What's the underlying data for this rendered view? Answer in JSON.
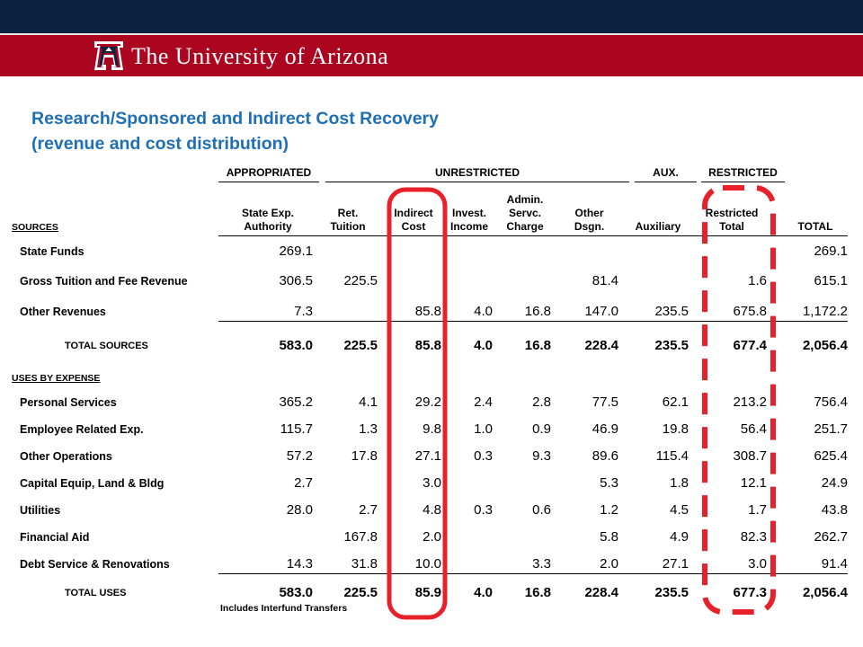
{
  "header": {
    "wordmark": "The University of Arizona",
    "brand_navy": "#0c2340",
    "brand_red": "#ab0520",
    "logo_icon": "block-a-logo-icon"
  },
  "title_line1": "Research/Sponsored and Indirect Cost Recovery",
  "title_line2": "(revenue and cost distribution)",
  "groups": {
    "appropriated": "APPROPRIATED",
    "unrestricted": "UNRESTRICTED",
    "aux": "AUX.",
    "restricted": "RESTRICTED"
  },
  "columns": [
    {
      "key": "state",
      "line1": "State Exp.",
      "line2": "Authority",
      "line3": ""
    },
    {
      "key": "ret",
      "line1": "Ret.",
      "line2": "Tuition",
      "line3": ""
    },
    {
      "key": "indirect",
      "line1": "Indirect",
      "line2": "Cost",
      "line3": ""
    },
    {
      "key": "invest",
      "line1": "Invest.",
      "line2": "Income",
      "line3": ""
    },
    {
      "key": "admin",
      "line1": "Admin.",
      "line2": "Servc.",
      "line3": "Charge"
    },
    {
      "key": "other",
      "line1": "Other",
      "line2": "Dsgn.",
      "line3": ""
    },
    {
      "key": "aux",
      "line1": "Auxiliary",
      "line2": "",
      "line3": ""
    },
    {
      "key": "restricted",
      "line1": "Restricted",
      "line2": "Total",
      "line3": ""
    },
    {
      "key": "total",
      "line1": "TOTAL",
      "line2": "",
      "line3": ""
    }
  ],
  "sources_label": "SOURCES",
  "sources": [
    {
      "label": "State Funds",
      "values": [
        "269.1",
        "",
        "",
        "",
        "",
        "",
        "",
        "",
        "269.1"
      ]
    },
    {
      "label": "Gross Tuition and Fee Revenue",
      "values": [
        "306.5",
        "225.5",
        "",
        "",
        "",
        "81.4",
        "",
        "1.6",
        "615.1"
      ]
    },
    {
      "label": "Other Revenues",
      "values": [
        "7.3",
        "",
        "85.8",
        "4.0",
        "16.8",
        "147.0",
        "235.5",
        "675.8",
        "1,172.2"
      ]
    }
  ],
  "total_sources": {
    "label": "TOTAL SOURCES",
    "values": [
      "583.0",
      "225.5",
      "85.8",
      "4.0",
      "16.8",
      "228.4",
      "235.5",
      "677.4",
      "2,056.4"
    ]
  },
  "uses_label": "USES BY EXPENSE",
  "uses": [
    {
      "label": "Personal Services",
      "values": [
        "365.2",
        "4.1",
        "29.2",
        "2.4",
        "2.8",
        "77.5",
        "62.1",
        "213.2",
        "756.4"
      ]
    },
    {
      "label": "Employee Related Exp.",
      "values": [
        "115.7",
        "1.3",
        "9.8",
        "1.0",
        "0.9",
        "46.9",
        "19.8",
        "56.4",
        "251.7"
      ]
    },
    {
      "label": "Other Operations",
      "values": [
        "57.2",
        "17.8",
        "27.1",
        "0.3",
        "9.3",
        "89.6",
        "115.4",
        "308.7",
        "625.4"
      ]
    },
    {
      "label": "Capital Equip, Land & Bldg",
      "values": [
        "2.7",
        "",
        "3.0",
        "",
        "",
        "5.3",
        "1.8",
        "12.1",
        "24.9"
      ]
    },
    {
      "label": "Utilities",
      "values": [
        "28.0",
        "2.7",
        "4.8",
        "0.3",
        "0.6",
        "1.2",
        "4.5",
        "1.7",
        "43.8"
      ]
    },
    {
      "label": "Financial Aid",
      "values": [
        "",
        "167.8",
        "2.0",
        "",
        "",
        "5.8",
        "4.9",
        "82.3",
        "262.7"
      ]
    },
    {
      "label": "Debt Service & Renovations",
      "values": [
        "14.3",
        "31.8",
        "10.0",
        "",
        "3.3",
        "2.0",
        "27.1",
        "3.0",
        "91.4"
      ]
    }
  ],
  "total_uses": {
    "label": "TOTAL USES",
    "values": [
      "583.0",
      "225.5",
      "85.9",
      "4.0",
      "16.8",
      "228.4",
      "235.5",
      "677.3",
      "2,056.4"
    ]
  },
  "note": "Includes Interfund Transfers",
  "highlights": {
    "indirect_color": "#e8202a",
    "restricted_color": "#e8202a"
  }
}
